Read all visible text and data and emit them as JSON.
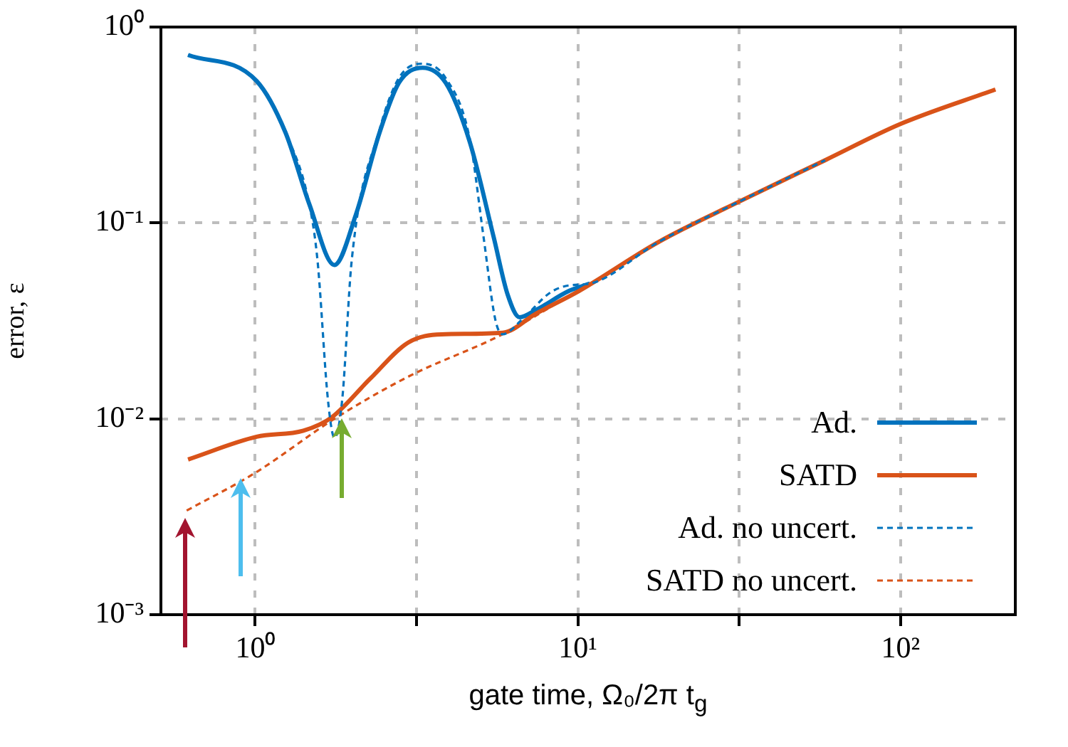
{
  "chart_data": {
    "type": "line",
    "xlabel": "gate time, Ω₀/2π t$_{g}$",
    "ylabel": "error, ε",
    "log": "xy",
    "grid": true,
    "legend": "bottom right",
    "marker": "none",
    "xlim": [
      0.51,
      227
    ],
    "ylim": [
      0.001,
      1
    ],
    "xticks": [
      {
        "value": 1,
        "label": "10⁰"
      },
      {
        "value": 3.162,
        "label": null
      },
      {
        "value": 10,
        "label": "10¹"
      },
      {
        "value": 31.62,
        "label": null
      },
      {
        "value": 100,
        "label": "10²"
      }
    ],
    "yticks": [
      {
        "value": 0.001,
        "label": "10⁻³"
      },
      {
        "value": 0.01,
        "label": "10⁻²"
      },
      {
        "value": 0.1,
        "label": "10⁻¹"
      },
      {
        "value": 1,
        "label": "10⁰"
      }
    ],
    "series": [
      {
        "name": "Ad.",
        "color": "#0072bd",
        "line_style": "solid",
        "x": [
          0.619,
          1.01,
          1.24,
          1.47,
          1.76,
          2.05,
          2.43,
          2.79,
          3.3,
          3.89,
          4.62,
          5.48,
          6.06,
          6.6,
          7.43,
          9.4,
          10.9
        ],
        "values": [
          0.72,
          0.53,
          0.29,
          0.125,
          0.061,
          0.11,
          0.29,
          0.52,
          0.62,
          0.52,
          0.26,
          0.085,
          0.043,
          0.033,
          0.036,
          0.045,
          0.049
        ]
      },
      {
        "name": "SATD",
        "color": "#d95319",
        "line_style": "solid",
        "x": [
          0.619,
          1.01,
          1.41,
          1.73,
          2.27,
          2.98,
          3.78,
          5.84,
          7.43,
          10.1,
          17.8,
          31.8,
          58.4,
          100,
          197
        ],
        "values": [
          0.0062,
          0.0081,
          0.0087,
          0.0102,
          0.016,
          0.0245,
          0.027,
          0.0275,
          0.0345,
          0.045,
          0.08,
          0.129,
          0.209,
          0.32,
          0.48
        ]
      },
      {
        "name": "Ad. no uncert.",
        "color": "#0072bd",
        "line_style": "dashed",
        "x": [
          0.619,
          1.01,
          1.24,
          1.47,
          1.56,
          1.68,
          1.76,
          1.86,
          1.99,
          2.43,
          2.79,
          3.3,
          3.89,
          4.62,
          5.1,
          5.55,
          5.84,
          6.7,
          8.2,
          9.4,
          10.9,
          17.8,
          31.8,
          58.4
        ],
        "values": [
          0.72,
          0.53,
          0.29,
          0.125,
          0.064,
          0.0125,
          0.008,
          0.0125,
          0.064,
          0.3,
          0.55,
          0.65,
          0.55,
          0.27,
          0.085,
          0.032,
          0.027,
          0.032,
          0.044,
          0.048,
          0.049,
          0.08,
          0.129,
          0.209
        ]
      },
      {
        "name": "SATD no uncert.",
        "color": "#d95319",
        "line_style": "dashed",
        "x": [
          0.613,
          1,
          1.76,
          3,
          5.84,
          10
        ],
        "values": [
          0.0034,
          0.0053,
          0.01,
          0.0165,
          0.027,
          0.045
        ]
      }
    ]
  }
}
